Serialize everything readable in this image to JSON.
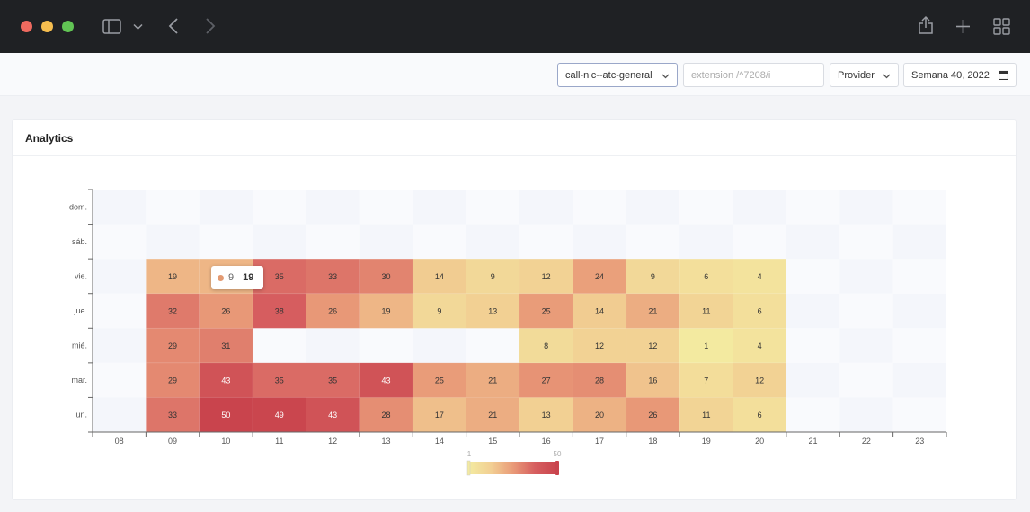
{
  "window": {
    "traffic_lights": {
      "close": "#ee6a5f",
      "minimize": "#f5bd4f",
      "maximize": "#61c454"
    }
  },
  "toolbar": {
    "queue_select": "call-nic--atc-general",
    "extension_placeholder": "extension /^7208/i",
    "provider_select": "Provider",
    "week_input": "Semana 40, 2022"
  },
  "card": {
    "title": "Analytics"
  },
  "tooltip": {
    "series_name": "9",
    "value": "19"
  },
  "chart_data": {
    "type": "heatmap",
    "x_categories": [
      "08",
      "09",
      "10",
      "11",
      "12",
      "13",
      "14",
      "15",
      "16",
      "17",
      "18",
      "19",
      "20",
      "21",
      "22",
      "23"
    ],
    "y_categories": [
      "lun.",
      "mar.",
      "mié.",
      "jue.",
      "vie.",
      "sáb.",
      "dom."
    ],
    "visual_map": {
      "min": 1,
      "max": 50,
      "min_label": "1",
      "max_label": "50",
      "colors": [
        "#f3eaa0",
        "#f2cf93",
        "#e99a78",
        "#d65e5f",
        "#c9444d"
      ]
    },
    "rows": {
      "lun.": [
        null,
        33,
        50,
        49,
        43,
        28,
        17,
        21,
        13,
        20,
        26,
        11,
        6,
        null,
        null,
        null
      ],
      "mar.": [
        null,
        29,
        43,
        35,
        35,
        43,
        25,
        21,
        27,
        28,
        16,
        7,
        12,
        null,
        null,
        null
      ],
      "mié.": [
        null,
        29,
        31,
        null,
        null,
        null,
        null,
        null,
        8,
        12,
        12,
        1,
        4,
        null,
        null,
        null
      ],
      "jue.": [
        null,
        32,
        26,
        38,
        26,
        19,
        9,
        13,
        25,
        14,
        21,
        11,
        6,
        null,
        null,
        null
      ],
      "vie.": [
        null,
        19,
        19,
        35,
        33,
        30,
        14,
        9,
        12,
        24,
        9,
        6,
        4,
        null,
        null,
        null
      ],
      "sáb.": [
        null,
        null,
        null,
        null,
        null,
        null,
        null,
        null,
        null,
        null,
        null,
        null,
        null,
        null,
        null,
        null
      ],
      "dom.": [
        null,
        null,
        null,
        null,
        null,
        null,
        null,
        null,
        null,
        null,
        null,
        null,
        null,
        null,
        null,
        null
      ]
    }
  }
}
